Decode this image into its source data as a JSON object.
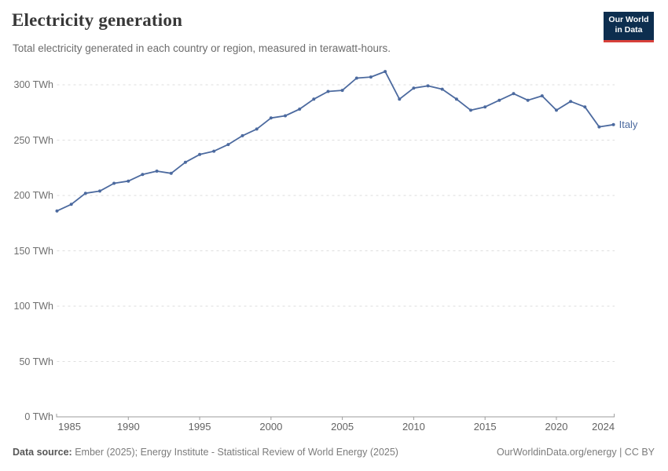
{
  "header": {
    "title": "Electricity generation",
    "subtitle": "Total electricity generated in each country or region, measured in terawatt-hours."
  },
  "logo": {
    "line1": "Our World",
    "line2": "in Data",
    "bg_color": "#0d2e4f",
    "accent_color": "#d8403a"
  },
  "chart_data": {
    "type": "line",
    "title": "Electricity generation",
    "xlabel": "",
    "ylabel": "TWh",
    "xlim": [
      1985,
      2024
    ],
    "ylim": [
      0,
      300
    ],
    "grid": "dashed-horizontal",
    "legend_position": "end-of-line",
    "x_ticks": [
      1985,
      1990,
      1995,
      2000,
      2005,
      2010,
      2015,
      2020,
      2024
    ],
    "y_ticks": [
      0,
      50,
      100,
      150,
      200,
      250,
      300
    ],
    "y_tick_format": "{v} TWh",
    "series": [
      {
        "name": "Italy",
        "color": "#4c6a9f",
        "x": [
          1985,
          1986,
          1987,
          1988,
          1989,
          1990,
          1991,
          1992,
          1993,
          1994,
          1995,
          1996,
          1997,
          1998,
          1999,
          2000,
          2001,
          2002,
          2003,
          2004,
          2005,
          2006,
          2007,
          2008,
          2009,
          2010,
          2011,
          2012,
          2013,
          2014,
          2015,
          2016,
          2017,
          2018,
          2019,
          2020,
          2021,
          2022,
          2023,
          2024
        ],
        "values": [
          186,
          192,
          202,
          204,
          211,
          213,
          219,
          222,
          220,
          230,
          237,
          240,
          246,
          254,
          260,
          270,
          272,
          278,
          287,
          294,
          295,
          306,
          307,
          312,
          287,
          297,
          299,
          296,
          287,
          277,
          280,
          286,
          292,
          286,
          290,
          277,
          285,
          280,
          262,
          264
        ]
      }
    ]
  },
  "footer": {
    "datasource_label": "Data source:",
    "datasource_value": " Ember (2025); Energy Institute - Statistical Review of World Energy (2025)",
    "right_text": "OurWorldinData.org/energy | CC BY"
  }
}
